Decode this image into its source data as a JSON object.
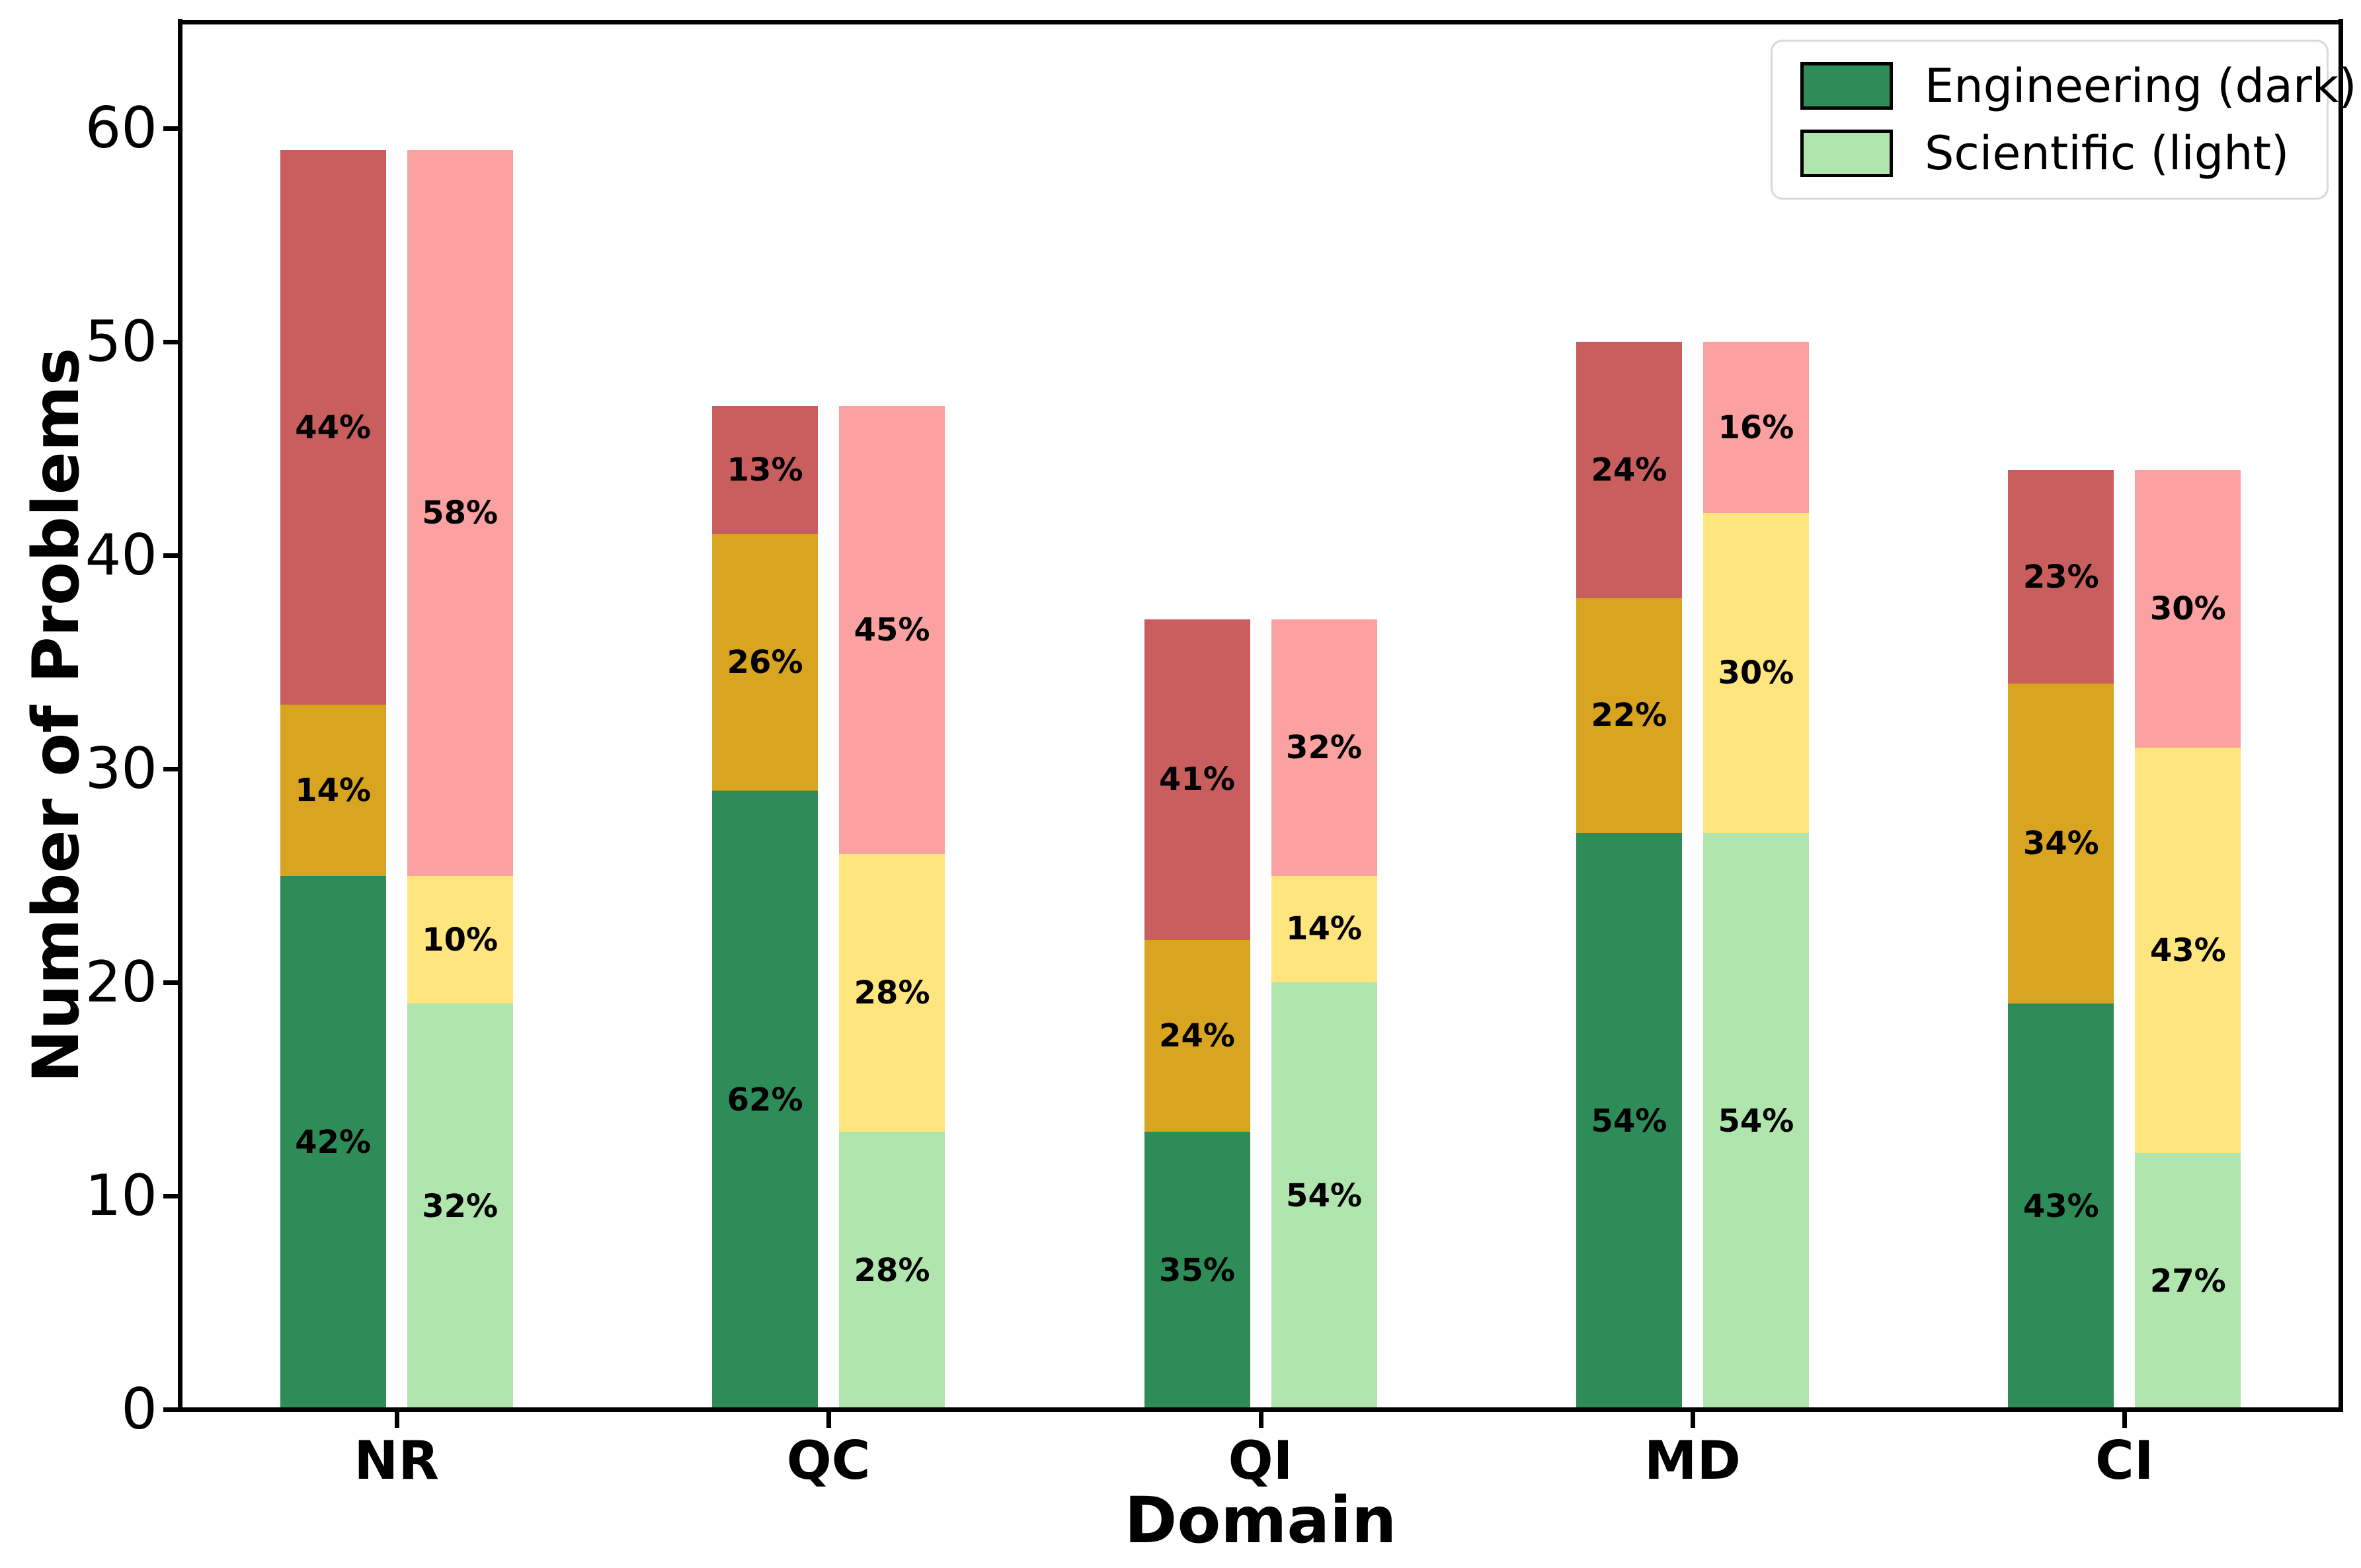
{
  "chart_data": {
    "type": "bar",
    "stacked": true,
    "grouped": true,
    "title": "",
    "xlabel": "Domain",
    "ylabel": "Number of Problems",
    "ylim": [
      0,
      65
    ],
    "yticks": [
      0,
      10,
      20,
      30,
      40,
      50,
      60
    ],
    "grid": false,
    "categories": [
      "NR",
      "QC",
      "QI",
      "MD",
      "CI"
    ],
    "group_totals": [
      59,
      47,
      37,
      50,
      44
    ],
    "legend_position": "upper right",
    "series": [
      {
        "name": "Engineering (dark)",
        "swatch_color": "#2e8c59",
        "segment_colors": [
          "#2e8c59",
          "#d9a41f",
          "#c85f5e"
        ],
        "stacks": [
          {
            "category": "NR",
            "total": 59,
            "values": [
              25,
              8,
              26
            ],
            "labels": [
              "42%",
              "14%",
              "44%"
            ]
          },
          {
            "category": "QC",
            "total": 47,
            "values": [
              29,
              12,
              6
            ],
            "labels": [
              "62%",
              "26%",
              "13%"
            ]
          },
          {
            "category": "QI",
            "total": 37,
            "values": [
              13,
              9,
              15
            ],
            "labels": [
              "35%",
              "24%",
              "41%"
            ]
          },
          {
            "category": "MD",
            "total": 50,
            "values": [
              27,
              11,
              12
            ],
            "labels": [
              "54%",
              "22%",
              "24%"
            ]
          },
          {
            "category": "CI",
            "total": 44,
            "values": [
              19,
              15,
              10
            ],
            "labels": [
              "43%",
              "34%",
              "23%"
            ]
          }
        ]
      },
      {
        "name": "Scientific (light)",
        "swatch_color": "#b0e5ae",
        "segment_colors": [
          "#b0e5ae",
          "#ffe57d",
          "#fba1a1"
        ],
        "stacks": [
          {
            "category": "NR",
            "total": 59,
            "values": [
              19,
              6,
              34
            ],
            "labels": [
              "32%",
              "10%",
              "58%"
            ]
          },
          {
            "category": "QC",
            "total": 47,
            "values": [
              13,
              13,
              21
            ],
            "labels": [
              "28%",
              "28%",
              "45%"
            ]
          },
          {
            "category": "QI",
            "total": 37,
            "values": [
              20,
              5,
              12
            ],
            "labels": [
              "54%",
              "14%",
              "32%"
            ]
          },
          {
            "category": "MD",
            "total": 50,
            "values": [
              27,
              15,
              8
            ],
            "labels": [
              "54%",
              "30%",
              "16%"
            ]
          },
          {
            "category": "CI",
            "total": 44,
            "values": [
              12,
              19,
              13
            ],
            "labels": [
              "27%",
              "43%",
              "30%"
            ]
          }
        ]
      }
    ],
    "legend": [
      {
        "label": "Engineering (dark)",
        "color": "#2e8c59"
      },
      {
        "label": "Scientific (light)",
        "color": "#b0e5ae"
      }
    ]
  }
}
